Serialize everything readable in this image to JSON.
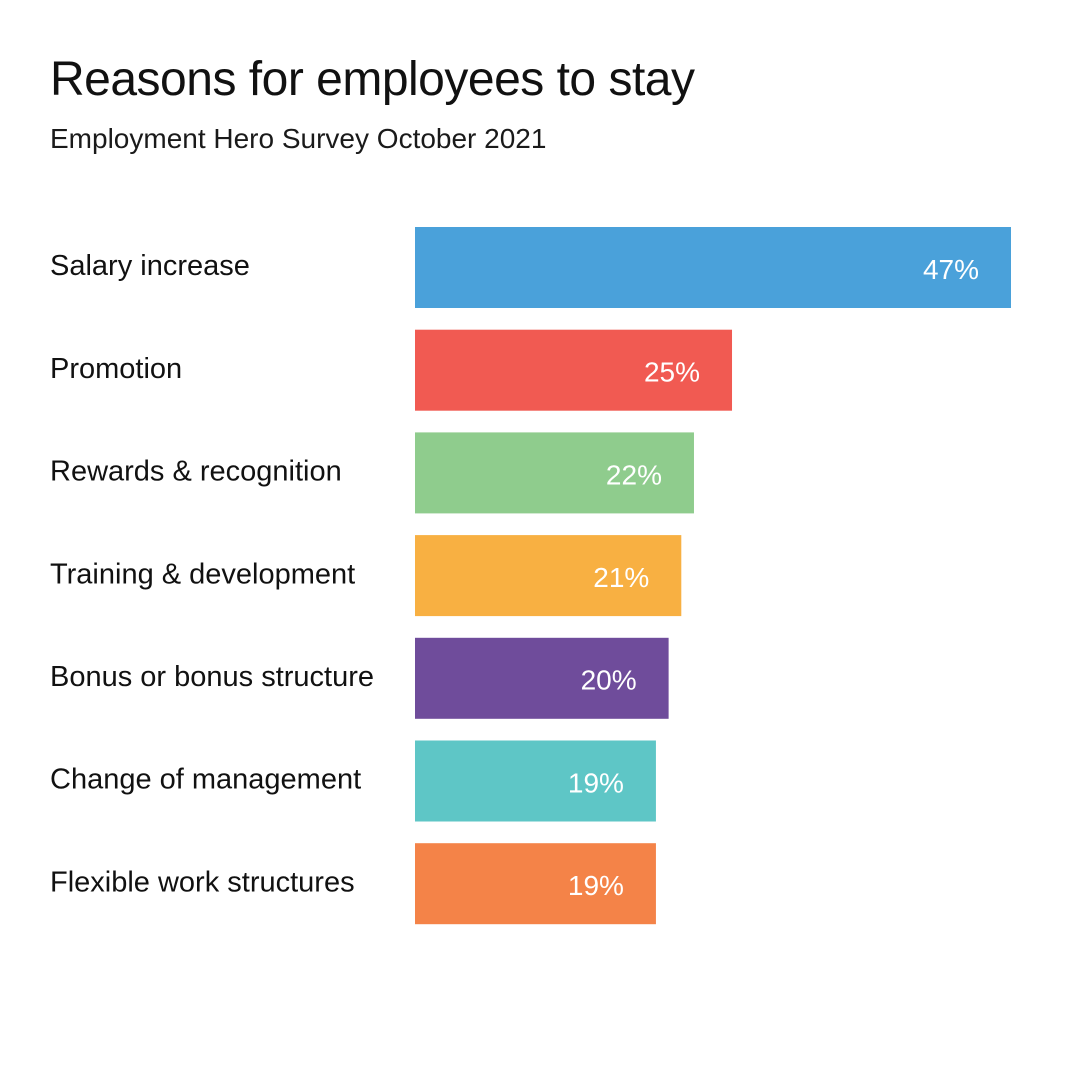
{
  "chart_data": {
    "type": "bar",
    "orientation": "horizontal",
    "title": "Reasons for employees to stay",
    "subtitle": "Employment Hero Survey October 2021",
    "categories": [
      "Salary increase",
      "Promotion",
      "Rewards & recognition",
      "Training & development",
      "Bonus or bonus structure",
      "Change of management",
      "Flexible work structures"
    ],
    "values": [
      47,
      25,
      22,
      21,
      20,
      19,
      19
    ],
    "value_labels": [
      "47%",
      "25%",
      "22%",
      "21%",
      "20%",
      "19%",
      "19%"
    ],
    "colors": [
      "#4aa1da",
      "#f15a52",
      "#8fcc8d",
      "#f8b042",
      "#6f4c9b",
      "#5ec6c6",
      "#f48348"
    ],
    "unit": "%",
    "xlim": [
      0,
      47
    ],
    "grid": false,
    "legend": "none"
  }
}
